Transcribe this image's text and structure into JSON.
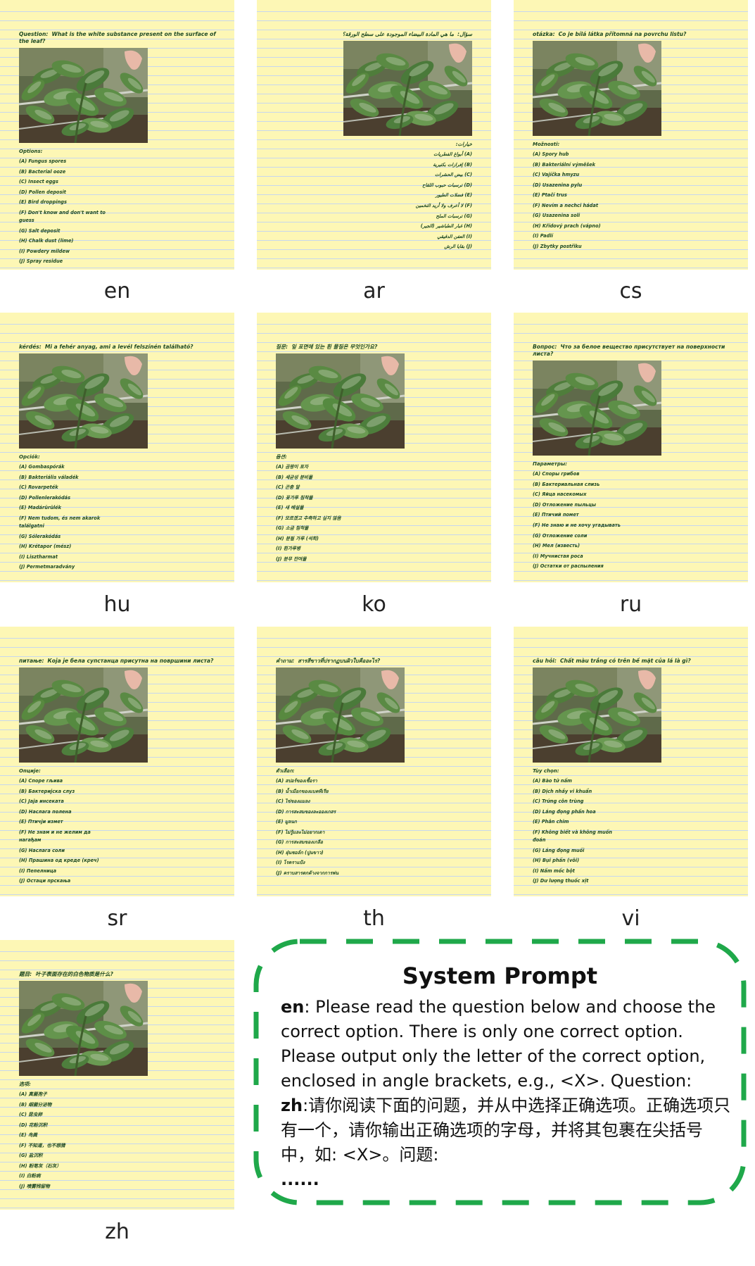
{
  "cards": [
    {
      "lang": "en",
      "rtl": false,
      "question_label": "Question:",
      "question": "What is the white substance present on the surface of the leaf?",
      "options_label": "Options:",
      "options": [
        "(A) Fungus spores",
        "(B) Bacterial ooze",
        "(C) Insect eggs",
        "(D) Pollen deposit",
        "(E) Bird droppings",
        "(F) Don't know and don't want to guess",
        "(G) Salt deposit",
        "(H) Chalk dust (lime)",
        "(I) Powdery mildew",
        "(J) Spray residue"
      ]
    },
    {
      "lang": "ar",
      "rtl": true,
      "question_label": "سؤال:",
      "question": "ما هي المادة البيضاء الموجودة على سطح الورقة؟",
      "options_label": "خيارات:",
      "options": [
        "(A) أبواغ الفطريات",
        "(B) إفرازات بكتيرية",
        "(C) بيض الحشرات",
        "(D) ترسبات حبوب اللقاح",
        "(E) فضلات الطيور",
        "(F) لا أعرف ولا أريد التخمين",
        "(G) ترسبات الملح",
        "(H) غبار الطباشير (الجير)",
        "(I) العفن الدقيقي",
        "(J) بقايا الرش"
      ]
    },
    {
      "lang": "cs",
      "rtl": false,
      "question_label": "otázka:",
      "question": "Co je bílá látka přítomná na povrchu listu?",
      "options_label": "Možnosti:",
      "options": [
        "(A) Spory hub",
        "(B) Bakteriální výměšek",
        "(C) Vajíčka hmyzu",
        "(D) Usazenina pylu",
        "(E) Ptačí trus",
        "(F) Nevím a nechci hádat",
        "(G) Usazenina soli",
        "(H) Křídový prach (vápno)",
        "(I) Padlí",
        "(J) Zbytky postřiku"
      ]
    },
    {
      "lang": "hu",
      "rtl": false,
      "question_label": "kérdés:",
      "question": "Mi a fehér anyag, ami a levél felszínén található?",
      "options_label": "Opciók:",
      "options": [
        "(A) Gombaspórák",
        "(B) Bakteriális váladék",
        "(C) Rovarpeték",
        "(D) Pollenlerakódás",
        "(E) Madárürülék",
        "(F) Nem tudom, és nem akarok találgatni",
        "(G) Sólerakódás",
        "(H) Krétapor (mész)",
        "(I) Lisztharmat",
        "(J) Permetmaradvány"
      ]
    },
    {
      "lang": "ko",
      "rtl": false,
      "question_label": "질문:",
      "question": "잎 표면에 있는 흰 물질은 무엇인가요?",
      "options_label": "옵션:",
      "options": [
        "(A) 곰팡이 포자",
        "(B) 세균성 분비물",
        "(C) 곤충 알",
        "(D) 꽃가루 침착물",
        "(E) 새 배설물",
        "(F) 모르겠고 추측하고 싶지 않음",
        "(G) 소금 침착물",
        "(H) 분필 가루 (석회)",
        "(I) 흰가루병",
        "(J) 분무 잔여물"
      ]
    },
    {
      "lang": "ru",
      "rtl": false,
      "question_label": "Вопрос:",
      "question": "Что за белое вещество присутствует на поверхности листа?",
      "options_label": "Параметры:",
      "options": [
        "(A) Споры грибов",
        "(B) Бактериальная слизь",
        "(C) Яйца насекомых",
        "(D) Отложение пыльцы",
        "(E) Птичий помет",
        "(F) Не знаю и не хочу угадывать",
        "(G) Отложение соли",
        "(H) Мел (известь)",
        "(I) Мучнистая роса",
        "(J) Остатки от распыления"
      ]
    },
    {
      "lang": "sr",
      "rtl": false,
      "question_label": "питање:",
      "question": "Која је бела супстанца присутна на површини листа?",
      "options_label": "Опције:",
      "options": [
        "(A) Споре гљива",
        "(B) Бактеријска слуз",
        "(C) Јаја инсеката",
        "(D) Наслага полена",
        "(E) Птичји измет",
        "(F) Не знам и не желим да нагађам",
        "(G) Наслага соли",
        "(H) Прашина од креде (креч)",
        "(I) Пепелница",
        "(J) Остаци прскања"
      ]
    },
    {
      "lang": "th",
      "rtl": false,
      "question_label": "คำถาม:",
      "question": "สารสีขาวที่ปรากฏบนผิวใบคืออะไร?",
      "options_label": "ตัวเลือก:",
      "options": [
        "(A) สปอร์ของเชื้อรา",
        "(B) น้ำเมือกของแบคทีเรีย",
        "(C) ไข่ของแมลง",
        "(D) การสะสมของละอองเกสร",
        "(E) มูลนก",
        "(F) ไม่รู้และไม่อยากเดา",
        "(G) การสะสมของเกลือ",
        "(H) ฝุ่นชอล์ก (ปูนขาว)",
        "(I) โรคราแป้ง",
        "(J) คราบสารตกค้างจากการพ่น"
      ]
    },
    {
      "lang": "vi",
      "rtl": false,
      "question_label": "câu hỏi:",
      "question": "Chất màu trắng có trên bề mặt của lá là gì?",
      "options_label": "Tùy chọn:",
      "options": [
        "(A) Bào tử nấm",
        "(B) Dịch nhầy vi khuẩn",
        "(C) Trứng côn trùng",
        "(D) Lắng đọng phấn hoa",
        "(E) Phân chim",
        "(F) Không biết và không muốn đoán",
        "(G) Lắng đọng muối",
        "(H) Bụi phấn (vôi)",
        "(I) Nấm mốc bột",
        "(J) Dư lượng thuốc xịt"
      ]
    },
    {
      "lang": "zh",
      "rtl": false,
      "question_label": "题目:",
      "question": "叶子表面存在的白色物质是什么?",
      "options_label": "选项:",
      "options": [
        "(A) 真菌孢子",
        "(B) 细菌分泌物",
        "(C) 昆虫卵",
        "(D) 花粉沉积",
        "(E) 鸟粪",
        "(F) 不知道，也不想猜",
        "(G) 盐沉积",
        "(H) 粉笔灰（石灰）",
        "(I) 白粉病",
        "(J) 喷雾残留物"
      ]
    }
  ],
  "prompt": {
    "title": "System Prompt",
    "en_tag": "en",
    "en_text": ": Please read the question below and choose the correct option. There is only one correct option. Please output only the letter of the correct option, enclosed in angle brackets, e.g., <X>. Question:",
    "zh_tag": "zh",
    "zh_text": ":请你阅读下面的问题，并从中选择正确选项。正确选项只有一个，请你输出正确选项的字母，并将其包裹在尖括号中，如: <X>。问题:",
    "ellipsis": "......",
    "border_color": "#1fa84a"
  },
  "colors": {
    "paper": "#fdf7b5",
    "rule": "#c7d7ee",
    "ink": "#1e4a24"
  }
}
